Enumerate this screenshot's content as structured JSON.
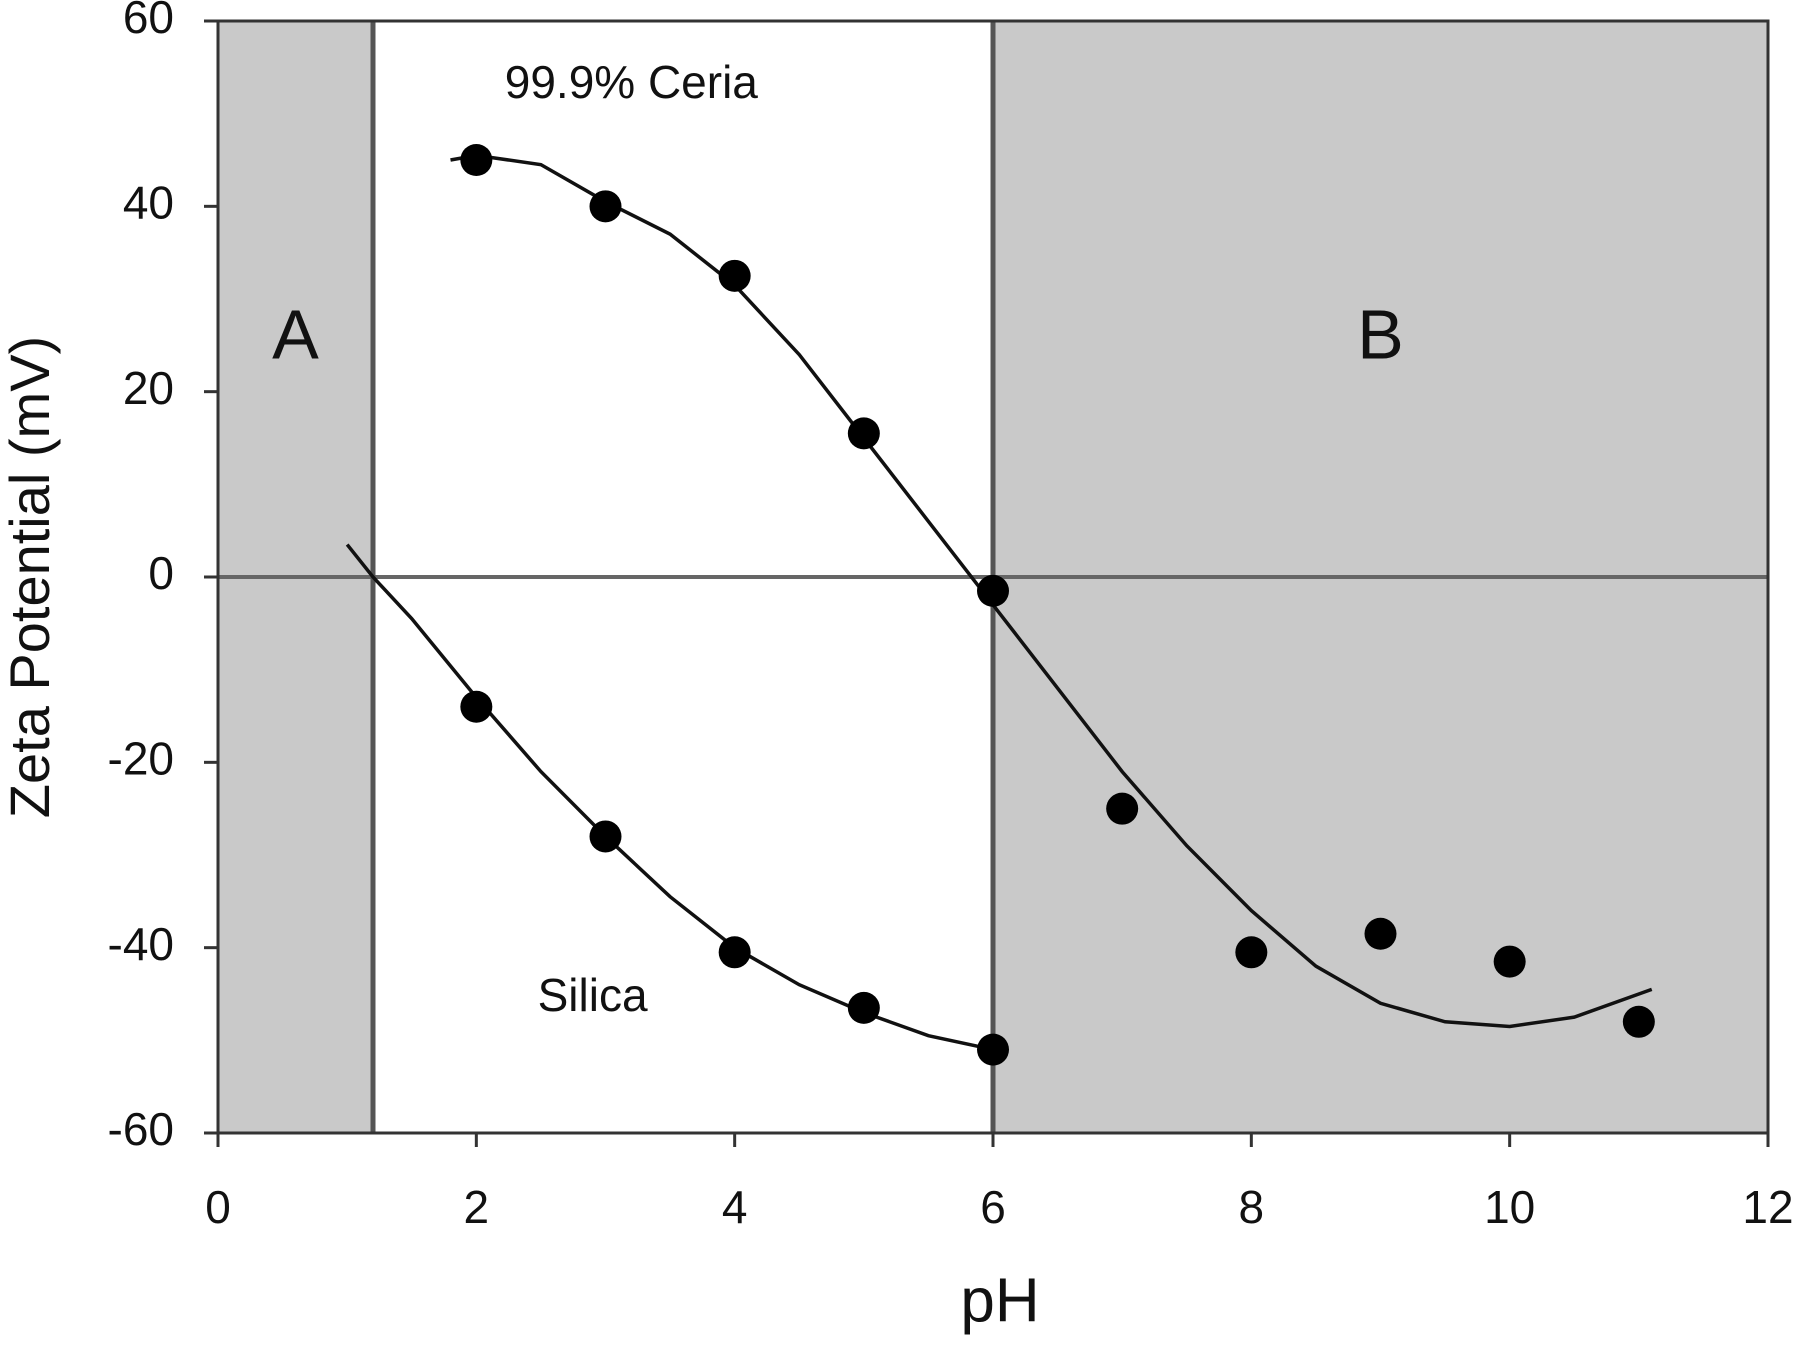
{
  "chart_data": {
    "type": "scatter",
    "x_label": "pH",
    "y_label": "Zeta Potential (mV)",
    "xlim": [
      0,
      12
    ],
    "xticks": [
      0,
      2,
      4,
      6,
      8,
      10,
      12
    ],
    "ylim": [
      -60,
      60
    ],
    "yticks": [
      -60,
      -40,
      -20,
      0,
      20,
      40,
      60
    ],
    "marker_color": "#000000",
    "line_color": "#111111",
    "region_color": "#c9c9c9",
    "regions": [
      {
        "label": "A",
        "xlim": [
          0,
          1.2
        ]
      },
      {
        "label": "B",
        "xlim": [
          6,
          12
        ]
      }
    ],
    "series": [
      {
        "name": "99.9% Ceria",
        "x": [
          2,
          3,
          4,
          5,
          6,
          7,
          8,
          9,
          10,
          11
        ],
        "values": [
          45,
          40,
          32.5,
          15.5,
          -1.5,
          -25,
          -40.5,
          -38.5,
          -41.5,
          -48
        ]
      },
      {
        "name": "Silica",
        "x": [
          2,
          3,
          4,
          5,
          6
        ],
        "values": [
          -14,
          -28,
          -40.5,
          -46.5,
          -51
        ]
      }
    ],
    "fits": [
      {
        "x": [
          1.8,
          2,
          2.5,
          3,
          3.5,
          4,
          4.5,
          5,
          5.5,
          6,
          6.5,
          7,
          7.5,
          8,
          8.5,
          9,
          9.5,
          10,
          10.5,
          11.1
        ],
        "values": [
          45,
          45.5,
          44.5,
          40.5,
          37,
          31.5,
          24,
          15,
          6,
          -3,
          -12,
          -21,
          -29,
          -36,
          -42,
          -46,
          -48,
          -48.5,
          -47.5,
          -44.5
        ]
      },
      {
        "x": [
          1,
          1.2,
          1.5,
          2,
          2.5,
          3,
          3.5,
          4,
          4.5,
          5,
          5.5,
          6
        ],
        "values": [
          3.5,
          0,
          -4.5,
          -13,
          -21,
          -28,
          -34.5,
          -40,
          -44,
          -47,
          -49.5,
          -51
        ]
      }
    ]
  }
}
